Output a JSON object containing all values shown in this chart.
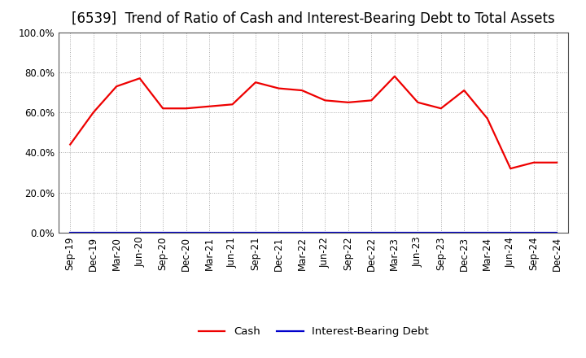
{
  "title": "[6539]  Trend of Ratio of Cash and Interest-Bearing Debt to Total Assets",
  "x_labels": [
    "Sep-19",
    "Dec-19",
    "Mar-20",
    "Jun-20",
    "Sep-20",
    "Dec-20",
    "Mar-21",
    "Jun-21",
    "Sep-21",
    "Dec-21",
    "Mar-22",
    "Jun-22",
    "Sep-22",
    "Dec-22",
    "Mar-23",
    "Jun-23",
    "Sep-23",
    "Dec-23",
    "Mar-24",
    "Jun-24",
    "Sep-24",
    "Dec-24"
  ],
  "cash_values": [
    44.0,
    60.0,
    73.0,
    77.0,
    62.0,
    62.0,
    63.0,
    64.0,
    75.0,
    72.0,
    71.0,
    66.0,
    65.0,
    66.0,
    78.0,
    65.0,
    62.0,
    71.0,
    57.0,
    32.0,
    35.0,
    35.0
  ],
  "debt_values": [
    0.0,
    0.0,
    0.0,
    0.0,
    0.0,
    0.0,
    0.0,
    0.0,
    0.0,
    0.0,
    0.0,
    0.0,
    0.0,
    0.0,
    0.0,
    0.0,
    0.0,
    0.0,
    0.0,
    0.0,
    0.0,
    0.0
  ],
  "cash_color": "#EE0000",
  "debt_color": "#0000CC",
  "ylim": [
    0,
    100
  ],
  "yticks": [
    0,
    20,
    40,
    60,
    80,
    100
  ],
  "ytick_labels": [
    "0.0%",
    "20.0%",
    "40.0%",
    "60.0%",
    "80.0%",
    "100.0%"
  ],
  "grid_color": "#aaaaaa",
  "bg_color": "#ffffff",
  "legend_cash": "Cash",
  "legend_debt": "Interest-Bearing Debt",
  "title_fontsize": 12,
  "tick_fontsize": 8.5,
  "legend_fontsize": 9.5
}
